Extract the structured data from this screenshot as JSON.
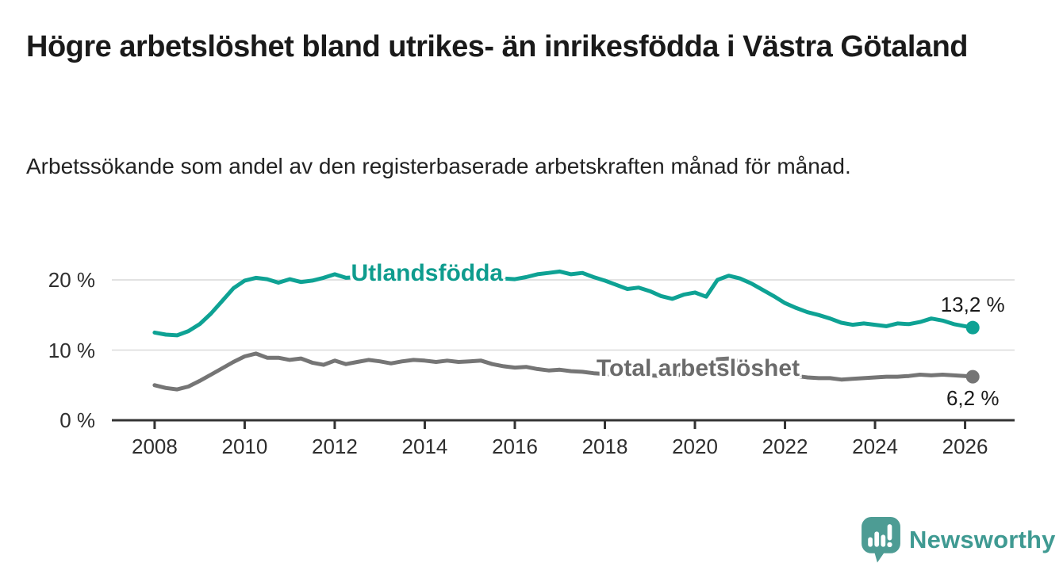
{
  "header": {
    "title": "Högre arbetslöshet bland utrikes- än inrikesfödda i Västra Götaland",
    "subtitle": "Arbetssökande som andel av den registerbaserade arbetskraften månad för månad."
  },
  "chart_data": {
    "type": "line",
    "title": "Högre arbetslöshet bland utrikes- än inrikesfödda i Västra Götaland",
    "subtitle": "Arbetssökande som andel av den registerbaserade arbetskraften månad för månad.",
    "unit": "%",
    "grid": true,
    "legend_position": "inline-labels-on-lines",
    "x_axis": {
      "range": [
        2007.05,
        2027.1
      ],
      "ticks": [
        2008,
        2010,
        2012,
        2014,
        2016,
        2018,
        2020,
        2022,
        2024,
        2026
      ],
      "tick_labels": [
        "2008",
        "2010",
        "2012",
        "2014",
        "2016",
        "2018",
        "2020",
        "2022",
        "2024",
        "2026"
      ]
    },
    "y_axis": {
      "range": [
        0,
        22.6
      ],
      "ticks": [
        0,
        10,
        20
      ],
      "tick_labels": [
        "0 %",
        "10 %",
        "20 %"
      ]
    },
    "x": [
      2008,
      2008.25,
      2008.5,
      2008.75,
      2009,
      2009.25,
      2009.5,
      2009.75,
      2010,
      2010.25,
      2010.5,
      2010.75,
      2011,
      2011.25,
      2011.5,
      2011.75,
      2012,
      2012.25,
      2012.5,
      2012.75,
      2013,
      2013.25,
      2013.5,
      2013.75,
      2014,
      2014.25,
      2014.5,
      2014.75,
      2015,
      2015.25,
      2015.5,
      2015.75,
      2016,
      2016.25,
      2016.5,
      2016.75,
      2017,
      2017.25,
      2017.5,
      2017.75,
      2018,
      2018.25,
      2018.5,
      2018.75,
      2019,
      2019.25,
      2019.5,
      2019.75,
      2020,
      2020.25,
      2020.5,
      2020.75,
      2021,
      2021.25,
      2021.5,
      2021.75,
      2022,
      2022.25,
      2022.5,
      2022.75,
      2023,
      2023.25,
      2023.5,
      2023.75,
      2024,
      2024.25,
      2024.5,
      2024.75,
      2025,
      2025.25,
      2025.5,
      2025.75,
      2026,
      2026.17
    ],
    "series": [
      {
        "id": "utlandsfodda",
        "name": "Utlandsfödda",
        "color": "#0ea294",
        "label_color": "#0e9c8e",
        "end_value": 13.2,
        "end_label": "13,2 %",
        "end_label_position": "above",
        "label_anchor": {
          "x": 2014.05,
          "y": 20.85
        },
        "values": [
          12.5,
          12.2,
          12.1,
          12.7,
          13.7,
          15.2,
          17,
          18.8,
          19.9,
          20.3,
          20.1,
          19.6,
          20.1,
          19.7,
          19.9,
          20.3,
          20.8,
          20.3,
          20.4,
          20.5,
          20.4,
          20.6,
          20.4,
          20.3,
          20.5,
          20.3,
          20.4,
          20.2,
          20.4,
          20.5,
          20.3,
          20.2,
          20.1,
          20.4,
          20.8,
          21,
          21.2,
          20.8,
          21,
          20.4,
          19.9,
          19.3,
          18.7,
          18.9,
          18.4,
          17.7,
          17.3,
          17.9,
          18.2,
          17.6,
          20,
          20.6,
          20.2,
          19.5,
          18.6,
          17.7,
          16.7,
          16,
          15.4,
          15,
          14.5,
          13.9,
          13.6,
          13.8,
          13.6,
          13.4,
          13.8,
          13.7,
          14,
          14.5,
          14.2,
          13.7,
          13.4,
          13.2
        ]
      },
      {
        "id": "total-arbetsloshet",
        "name": "Total arbetslöshet",
        "color": "#757575",
        "label_color": "#6b6b6b",
        "end_value": 6.2,
        "end_label": "6,2 %",
        "end_label_position": "below",
        "label_anchor": {
          "x": 2020.07,
          "y": 7.35
        },
        "values": [
          5,
          4.6,
          4.4,
          4.8,
          5.6,
          6.5,
          7.4,
          8.3,
          9.1,
          9.5,
          8.9,
          8.9,
          8.6,
          8.8,
          8.2,
          7.9,
          8.5,
          8,
          8.3,
          8.6,
          8.4,
          8.1,
          8.4,
          8.6,
          8.5,
          8.3,
          8.5,
          8.3,
          8.4,
          8.5,
          8,
          7.7,
          7.5,
          7.6,
          7.3,
          7.1,
          7.2,
          7,
          6.9,
          6.7,
          6.6,
          6.5,
          6.4,
          6.4,
          6.4,
          6.3,
          6.4,
          6.5,
          6.8,
          7.6,
          8.7,
          8.8,
          8.4,
          7.9,
          7.3,
          6.9,
          6.6,
          6.3,
          6.1,
          6,
          6,
          5.8,
          5.9,
          6,
          6.1,
          6.2,
          6.2,
          6.3,
          6.5,
          6.4,
          6.5,
          6.4,
          6.3,
          6.2
        ]
      }
    ]
  },
  "branding": {
    "logo_text": "Newsworthy",
    "logo_icon": "newsworthy-bar-chart-speech-bubble-icon"
  },
  "colors": {
    "background": "#ffffff",
    "title_text": "#1a1a1a",
    "body_text": "#222222",
    "axis": "#333333",
    "tick_text": "#2e2e2e",
    "gridline": "#d9d9d9",
    "accent_teal": "#0ea294",
    "series_gray": "#757575",
    "logo_bubble": "#4d9c94",
    "logo_text": "#3f9a92"
  }
}
